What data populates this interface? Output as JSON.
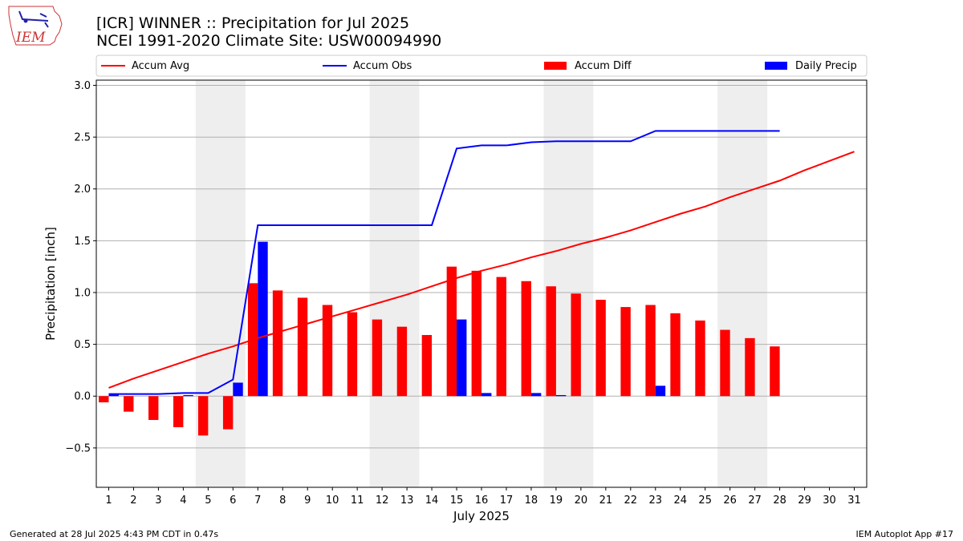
{
  "logo": {
    "text": "IEM"
  },
  "title_lines": [
    "[ICR] WINNER :: Precipitation for Jul 2025",
    "NCEI 1991-2020 Climate Site: USW00094990"
  ],
  "footer": {
    "left": "Generated at 28 Jul 2025 4:43 PM CDT in 0.47s",
    "right": "IEM Autoplot App #17"
  },
  "colors": {
    "accum_avg": "#ff0000",
    "accum_obs": "#0000ff",
    "accum_diff": "#ff0000",
    "daily_precip": "#0000ff",
    "weekend_shade": "#eeeeee",
    "grid": "#b0b0b0"
  },
  "chart_data": {
    "type": "bar",
    "xlabel": "July 2025",
    "ylabel": "Precipitation [inch]",
    "xlim": [
      0.5,
      31.5
    ],
    "ylim": [
      -0.88,
      3.05
    ],
    "yticks": [
      -0.5,
      0.0,
      0.5,
      1.0,
      1.5,
      2.0,
      2.5,
      3.0
    ],
    "ytick_labels": [
      "−0.5",
      "0.0",
      "0.5",
      "1.0",
      "1.5",
      "2.0",
      "2.5",
      "3.0"
    ],
    "days": [
      1,
      2,
      3,
      4,
      5,
      6,
      7,
      8,
      9,
      10,
      11,
      12,
      13,
      14,
      15,
      16,
      17,
      18,
      19,
      20,
      21,
      22,
      23,
      24,
      25,
      26,
      27,
      28,
      29,
      30,
      31
    ],
    "weekend_ranges": [
      [
        4.5,
        6.5
      ],
      [
        11.5,
        13.5
      ],
      [
        18.5,
        20.5
      ],
      [
        25.5,
        27.5
      ]
    ],
    "grid": true,
    "legend_placement": "top",
    "legend": [
      "Accum Avg",
      "Accum Obs",
      "Accum Diff",
      "Daily Precip"
    ],
    "series": [
      {
        "name": "Accum Avg",
        "kind": "line",
        "values": [
          0.08,
          0.17,
          0.25,
          0.33,
          0.41,
          0.48,
          0.56,
          0.63,
          0.7,
          0.77,
          0.84,
          0.91,
          0.98,
          1.06,
          1.14,
          1.21,
          1.27,
          1.34,
          1.4,
          1.47,
          1.53,
          1.6,
          1.68,
          1.76,
          1.83,
          1.92,
          2.0,
          2.08,
          2.18,
          2.27,
          2.36
        ]
      },
      {
        "name": "Accum Obs",
        "kind": "line",
        "values": [
          0.02,
          0.02,
          0.02,
          0.03,
          0.03,
          0.16,
          1.65,
          1.65,
          1.65,
          1.65,
          1.65,
          1.65,
          1.65,
          1.65,
          2.39,
          2.42,
          2.42,
          2.45,
          2.46,
          2.46,
          2.46,
          2.46,
          2.56,
          2.56,
          2.56,
          2.56,
          2.56,
          2.56
        ]
      },
      {
        "name": "Accum Diff",
        "kind": "bar",
        "values": [
          -0.06,
          -0.15,
          -0.23,
          -0.3,
          -0.38,
          -0.32,
          1.09,
          1.02,
          0.95,
          0.88,
          0.81,
          0.74,
          0.67,
          0.59,
          1.25,
          1.21,
          1.15,
          1.11,
          1.06,
          0.99,
          0.93,
          0.86,
          0.88,
          0.8,
          0.73,
          0.64,
          0.56,
          0.48
        ]
      },
      {
        "name": "Daily Precip",
        "kind": "bar",
        "values": [
          0.02,
          0,
          0,
          0.01,
          0,
          0.13,
          1.49,
          0,
          0,
          0,
          0,
          0,
          0,
          0,
          0.74,
          0.03,
          0,
          0.03,
          0.01,
          0,
          0,
          0,
          0.1,
          0,
          0,
          0,
          0,
          0
        ]
      }
    ]
  }
}
